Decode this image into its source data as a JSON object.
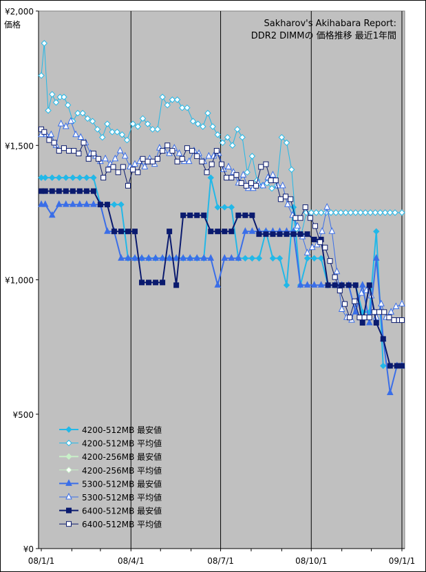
{
  "chart_data": {
    "type": "line",
    "title_line1": "Sakharov's Akihabara Report:",
    "title_line2": "DDR2 DIMMの 価格推移 最近1年間",
    "ylabel": "価格",
    "ylim": [
      0,
      2000
    ],
    "yticks": [
      {
        "value": 0,
        "label": "¥0"
      },
      {
        "value": 500,
        "label": "¥500"
      },
      {
        "value": 1000,
        "label": "¥1,000"
      },
      {
        "value": 1500,
        "label": "¥1,500"
      },
      {
        "value": 2000,
        "label": "¥2,000"
      }
    ],
    "xlim": [
      "2008-01-01",
      "2009-01-01"
    ],
    "xticks": [
      {
        "value": "2008-01-01",
        "label": "08/1/1"
      },
      {
        "value": "2008-04-01",
        "label": "08/4/1"
      },
      {
        "value": "2008-07-01",
        "label": "08/7/1"
      },
      {
        "value": "2008-10-01",
        "label": "08/10/1"
      },
      {
        "value": "2009-01-01",
        "label": "09/1/1"
      }
    ],
    "grid": "vertical-major",
    "legend_position": "bottom-left",
    "series": [
      {
        "name": "4200-512MB 最安値",
        "color": "#22b8e8",
        "marker": "diamond",
        "fill": "#22b8e8",
        "width": 2,
        "x": [
          "2008-01-01",
          "2008-01-05",
          "2008-01-12",
          "2008-01-19",
          "2008-01-26",
          "2008-02-02",
          "2008-02-09",
          "2008-02-16",
          "2008-02-23",
          "2008-03-01",
          "2008-03-08",
          "2008-03-15",
          "2008-03-22",
          "2008-03-29",
          "2008-04-05",
          "2008-04-12",
          "2008-04-19",
          "2008-04-26",
          "2008-05-03",
          "2008-05-10",
          "2008-05-17",
          "2008-05-24",
          "2008-05-31",
          "2008-06-07",
          "2008-06-14",
          "2008-06-21",
          "2008-06-28",
          "2008-07-05",
          "2008-07-12",
          "2008-07-19",
          "2008-07-26",
          "2008-08-02",
          "2008-08-09",
          "2008-08-16",
          "2008-08-23",
          "2008-08-30",
          "2008-09-06",
          "2008-09-13",
          "2008-09-20",
          "2008-09-27",
          "2008-10-04",
          "2008-10-11",
          "2008-10-18",
          "2008-10-25",
          "2008-11-01",
          "2008-11-08",
          "2008-11-15",
          "2008-11-22",
          "2008-11-29",
          "2008-12-06",
          "2008-12-13",
          "2008-12-20",
          "2008-12-27",
          "2009-01-01"
        ],
        "values": [
          1380,
          1380,
          1380,
          1380,
          1380,
          1380,
          1380,
          1380,
          1380,
          1280,
          1280,
          1280,
          1280,
          1080,
          1080,
          1080,
          1080,
          1080,
          1080,
          1080,
          1080,
          1080,
          1080,
          1080,
          1080,
          1380,
          1270,
          1270,
          1270,
          1080,
          1080,
          1080,
          1080,
          1180,
          1080,
          1080,
          980,
          1270,
          980,
          1080,
          1080,
          1080,
          980,
          980,
          980,
          980,
          980,
          880,
          880,
          1180,
          680,
          680,
          680,
          680
        ]
      },
      {
        "name": "4200-512MB 平均値",
        "color": "#22b8e8",
        "marker": "diamond",
        "fill": "#ffffff",
        "width": 1,
        "x": [
          "2008-01-01",
          "2008-01-04",
          "2008-01-08",
          "2008-01-12",
          "2008-01-16",
          "2008-01-20",
          "2008-01-24",
          "2008-01-28",
          "2008-02-02",
          "2008-02-07",
          "2008-02-12",
          "2008-02-17",
          "2008-02-22",
          "2008-02-27",
          "2008-03-03",
          "2008-03-08",
          "2008-03-13",
          "2008-03-18",
          "2008-03-23",
          "2008-03-28",
          "2008-04-03",
          "2008-04-08",
          "2008-04-13",
          "2008-04-18",
          "2008-04-23",
          "2008-04-28",
          "2008-05-03",
          "2008-05-08",
          "2008-05-13",
          "2008-05-18",
          "2008-05-23",
          "2008-05-28",
          "2008-06-03",
          "2008-06-08",
          "2008-06-13",
          "2008-06-18",
          "2008-06-23",
          "2008-06-28",
          "2008-07-03",
          "2008-07-08",
          "2008-07-13",
          "2008-07-18",
          "2008-07-23",
          "2008-07-28",
          "2008-08-02",
          "2008-08-07",
          "2008-08-12",
          "2008-08-17",
          "2008-08-22",
          "2008-08-27",
          "2008-09-01",
          "2008-09-06",
          "2008-09-11",
          "2008-09-16",
          "2008-09-21",
          "2008-09-26",
          "2008-10-01",
          "2008-10-06",
          "2008-10-11",
          "2008-10-16",
          "2008-10-21",
          "2008-10-26",
          "2008-10-31",
          "2008-11-05",
          "2008-11-10",
          "2008-11-15",
          "2008-11-20",
          "2008-11-25",
          "2008-11-30",
          "2008-12-05",
          "2008-12-10",
          "2008-12-15",
          "2008-12-20",
          "2008-12-25",
          "2009-01-01"
        ],
        "values": [
          1760,
          1880,
          1630,
          1690,
          1660,
          1680,
          1680,
          1650,
          1590,
          1620,
          1620,
          1600,
          1590,
          1560,
          1530,
          1580,
          1550,
          1550,
          1540,
          1520,
          1580,
          1570,
          1600,
          1580,
          1560,
          1560,
          1680,
          1650,
          1670,
          1670,
          1640,
          1640,
          1590,
          1580,
          1570,
          1620,
          1570,
          1540,
          1510,
          1530,
          1500,
          1560,
          1530,
          1400,
          1460,
          1370,
          1350,
          1360,
          1340,
          1350,
          1530,
          1510,
          1410,
          1190,
          1170,
          1250,
          1250,
          1250,
          1250,
          1250,
          1250,
          1250,
          1250,
          1250,
          1250,
          1250,
          1250,
          1250,
          1250,
          1250,
          1250,
          1250,
          1250,
          1250,
          1250
        ]
      },
      {
        "name": "4200-256MB 最安値",
        "color": "#c8f0c8",
        "marker": "diamond",
        "fill": "#c8f0c8",
        "width": 2,
        "x": [],
        "values": []
      },
      {
        "name": "4200-256MB 平均値",
        "color": "#c8f0c8",
        "marker": "diamond",
        "fill": "#ffffff",
        "width": 1,
        "x": [],
        "values": []
      },
      {
        "name": "5300-512MB 最安値",
        "color": "#3a6ee8",
        "marker": "triangle",
        "fill": "#3a6ee8",
        "width": 2,
        "x": [
          "2008-01-01",
          "2008-01-05",
          "2008-01-12",
          "2008-01-19",
          "2008-01-26",
          "2008-02-02",
          "2008-02-09",
          "2008-02-16",
          "2008-02-23",
          "2008-03-01",
          "2008-03-08",
          "2008-03-15",
          "2008-03-22",
          "2008-03-29",
          "2008-04-05",
          "2008-04-12",
          "2008-04-19",
          "2008-04-26",
          "2008-05-03",
          "2008-05-10",
          "2008-05-17",
          "2008-05-24",
          "2008-05-31",
          "2008-06-07",
          "2008-06-14",
          "2008-06-21",
          "2008-06-28",
          "2008-07-05",
          "2008-07-12",
          "2008-07-19",
          "2008-07-26",
          "2008-08-02",
          "2008-08-09",
          "2008-08-16",
          "2008-08-23",
          "2008-08-30",
          "2008-09-06",
          "2008-09-13",
          "2008-09-20",
          "2008-09-27",
          "2008-10-04",
          "2008-10-11",
          "2008-10-18",
          "2008-10-25",
          "2008-11-01",
          "2008-11-08",
          "2008-11-15",
          "2008-11-22",
          "2008-11-29",
          "2008-12-06",
          "2008-12-13",
          "2008-12-20",
          "2008-12-27",
          "2009-01-01"
        ],
        "values": [
          1280,
          1280,
          1240,
          1280,
          1280,
          1280,
          1280,
          1280,
          1280,
          1280,
          1180,
          1180,
          1080,
          1080,
          1080,
          1080,
          1080,
          1080,
          1080,
          1080,
          1080,
          1080,
          1080,
          1080,
          1080,
          1080,
          980,
          1080,
          1080,
          1080,
          1180,
          1180,
          1180,
          1180,
          1180,
          1180,
          1180,
          1180,
          980,
          980,
          980,
          980,
          980,
          980,
          980,
          980,
          880,
          980,
          840,
          1080,
          780,
          580,
          680,
          680
        ]
      },
      {
        "name": "5300-512MB 平均値",
        "color": "#3a6ee8",
        "marker": "triangle",
        "fill": "#ffffff",
        "width": 1,
        "x": [
          "2008-01-01",
          "2008-01-06",
          "2008-01-11",
          "2008-01-16",
          "2008-01-21",
          "2008-01-26",
          "2008-01-31",
          "2008-02-05",
          "2008-02-10",
          "2008-02-15",
          "2008-02-20",
          "2008-02-25",
          "2008-03-01",
          "2008-03-06",
          "2008-03-11",
          "2008-03-16",
          "2008-03-21",
          "2008-03-26",
          "2008-03-31",
          "2008-04-05",
          "2008-04-10",
          "2008-04-15",
          "2008-04-20",
          "2008-04-25",
          "2008-04-30",
          "2008-05-05",
          "2008-05-10",
          "2008-05-15",
          "2008-05-20",
          "2008-05-25",
          "2008-05-30",
          "2008-06-04",
          "2008-06-09",
          "2008-06-14",
          "2008-06-19",
          "2008-06-24",
          "2008-06-29",
          "2008-07-04",
          "2008-07-09",
          "2008-07-14",
          "2008-07-19",
          "2008-07-24",
          "2008-07-29",
          "2008-08-03",
          "2008-08-08",
          "2008-08-13",
          "2008-08-18",
          "2008-08-23",
          "2008-08-28",
          "2008-09-02",
          "2008-09-07",
          "2008-09-12",
          "2008-09-17",
          "2008-09-22",
          "2008-09-27",
          "2008-10-02",
          "2008-10-07",
          "2008-10-12",
          "2008-10-17",
          "2008-10-22",
          "2008-10-27",
          "2008-11-01",
          "2008-11-06",
          "2008-11-11",
          "2008-11-16",
          "2008-11-21",
          "2008-11-26",
          "2008-12-01",
          "2008-12-06",
          "2008-12-11",
          "2008-12-16",
          "2008-12-21",
          "2008-12-26",
          "2009-01-01"
        ],
        "values": [
          1540,
          1540,
          1540,
          1500,
          1580,
          1570,
          1590,
          1540,
          1530,
          1510,
          1470,
          1460,
          1440,
          1450,
          1430,
          1450,
          1480,
          1460,
          1420,
          1430,
          1440,
          1420,
          1450,
          1430,
          1490,
          1480,
          1470,
          1490,
          1470,
          1440,
          1440,
          1480,
          1470,
          1440,
          1460,
          1460,
          1470,
          1410,
          1420,
          1400,
          1360,
          1390,
          1340,
          1340,
          1360,
          1350,
          1380,
          1390,
          1350,
          1350,
          1280,
          1240,
          1200,
          1160,
          1100,
          1120,
          1130,
          1180,
          1270,
          1180,
          1030,
          890,
          860,
          850,
          920,
          950,
          960,
          940,
          860,
          910,
          860,
          880,
          900,
          910
        ]
      },
      {
        "name": "6400-512MB 最安値",
        "color": "#0a1a6e",
        "marker": "square",
        "fill": "#0a1a6e",
        "width": 2,
        "x": [
          "2008-01-01",
          "2008-01-05",
          "2008-01-12",
          "2008-01-19",
          "2008-01-26",
          "2008-02-02",
          "2008-02-09",
          "2008-02-16",
          "2008-02-23",
          "2008-03-01",
          "2008-03-08",
          "2008-03-15",
          "2008-03-22",
          "2008-03-29",
          "2008-04-05",
          "2008-04-12",
          "2008-04-19",
          "2008-04-26",
          "2008-05-03",
          "2008-05-10",
          "2008-05-17",
          "2008-05-24",
          "2008-05-31",
          "2008-06-07",
          "2008-06-14",
          "2008-06-21",
          "2008-06-28",
          "2008-07-05",
          "2008-07-12",
          "2008-07-19",
          "2008-07-26",
          "2008-08-02",
          "2008-08-09",
          "2008-08-16",
          "2008-08-23",
          "2008-08-30",
          "2008-09-06",
          "2008-09-13",
          "2008-09-20",
          "2008-09-27",
          "2008-10-04",
          "2008-10-11",
          "2008-10-18",
          "2008-10-25",
          "2008-11-01",
          "2008-11-08",
          "2008-11-15",
          "2008-11-22",
          "2008-11-29",
          "2008-12-06",
          "2008-12-13",
          "2008-12-20",
          "2008-12-27",
          "2009-01-01"
        ],
        "values": [
          1330,
          1330,
          1330,
          1330,
          1330,
          1330,
          1330,
          1330,
          1330,
          1280,
          1280,
          1180,
          1180,
          1180,
          1180,
          990,
          990,
          990,
          990,
          1180,
          980,
          1240,
          1240,
          1240,
          1240,
          1180,
          1180,
          1180,
          1180,
          1240,
          1240,
          1240,
          1170,
          1170,
          1170,
          1170,
          1170,
          1170,
          1170,
          1170,
          1150,
          1150,
          980,
          980,
          980,
          980,
          980,
          840,
          980,
          840,
          780,
          680,
          680,
          680
        ]
      },
      {
        "name": "6400-512MB 平均値",
        "color": "#0a1a6e",
        "marker": "square",
        "fill": "#ffffff",
        "width": 1,
        "x": [
          "2008-01-01",
          "2008-01-04",
          "2008-01-09",
          "2008-01-14",
          "2008-01-19",
          "2008-01-24",
          "2008-01-29",
          "2008-02-03",
          "2008-02-08",
          "2008-02-13",
          "2008-02-18",
          "2008-02-23",
          "2008-02-28",
          "2008-03-04",
          "2008-03-09",
          "2008-03-14",
          "2008-03-19",
          "2008-03-24",
          "2008-03-29",
          "2008-04-03",
          "2008-04-08",
          "2008-04-13",
          "2008-04-18",
          "2008-04-23",
          "2008-04-28",
          "2008-05-03",
          "2008-05-08",
          "2008-05-13",
          "2008-05-18",
          "2008-05-23",
          "2008-05-28",
          "2008-06-02",
          "2008-06-07",
          "2008-06-12",
          "2008-06-17",
          "2008-06-22",
          "2008-06-27",
          "2008-07-02",
          "2008-07-07",
          "2008-07-12",
          "2008-07-17",
          "2008-07-22",
          "2008-07-27",
          "2008-08-01",
          "2008-08-06",
          "2008-08-11",
          "2008-08-16",
          "2008-08-21",
          "2008-08-26",
          "2008-08-31",
          "2008-09-05",
          "2008-09-10",
          "2008-09-15",
          "2008-09-20",
          "2008-09-25",
          "2008-09-30",
          "2008-10-05",
          "2008-10-10",
          "2008-10-15",
          "2008-10-20",
          "2008-10-25",
          "2008-10-30",
          "2008-11-04",
          "2008-11-09",
          "2008-11-14",
          "2008-11-19",
          "2008-11-24",
          "2008-11-29",
          "2008-12-04",
          "2008-12-09",
          "2008-12-14",
          "2008-12-19",
          "2008-12-24",
          "2008-12-29",
          "2009-01-01"
        ],
        "values": [
          1560,
          1550,
          1520,
          1510,
          1480,
          1490,
          1480,
          1480,
          1470,
          1510,
          1450,
          1470,
          1450,
          1380,
          1410,
          1420,
          1400,
          1420,
          1350,
          1410,
          1400,
          1450,
          1440,
          1440,
          1450,
          1480,
          1500,
          1480,
          1440,
          1450,
          1490,
          1480,
          1460,
          1440,
          1400,
          1430,
          1480,
          1430,
          1380,
          1380,
          1390,
          1360,
          1350,
          1360,
          1350,
          1420,
          1430,
          1370,
          1370,
          1300,
          1310,
          1300,
          1230,
          1230,
          1270,
          1230,
          1200,
          1140,
          1120,
          1070,
          1010,
          960,
          910,
          860,
          920,
          860,
          860,
          860,
          880,
          880,
          880,
          860,
          850,
          850,
          850
        ]
      }
    ]
  }
}
